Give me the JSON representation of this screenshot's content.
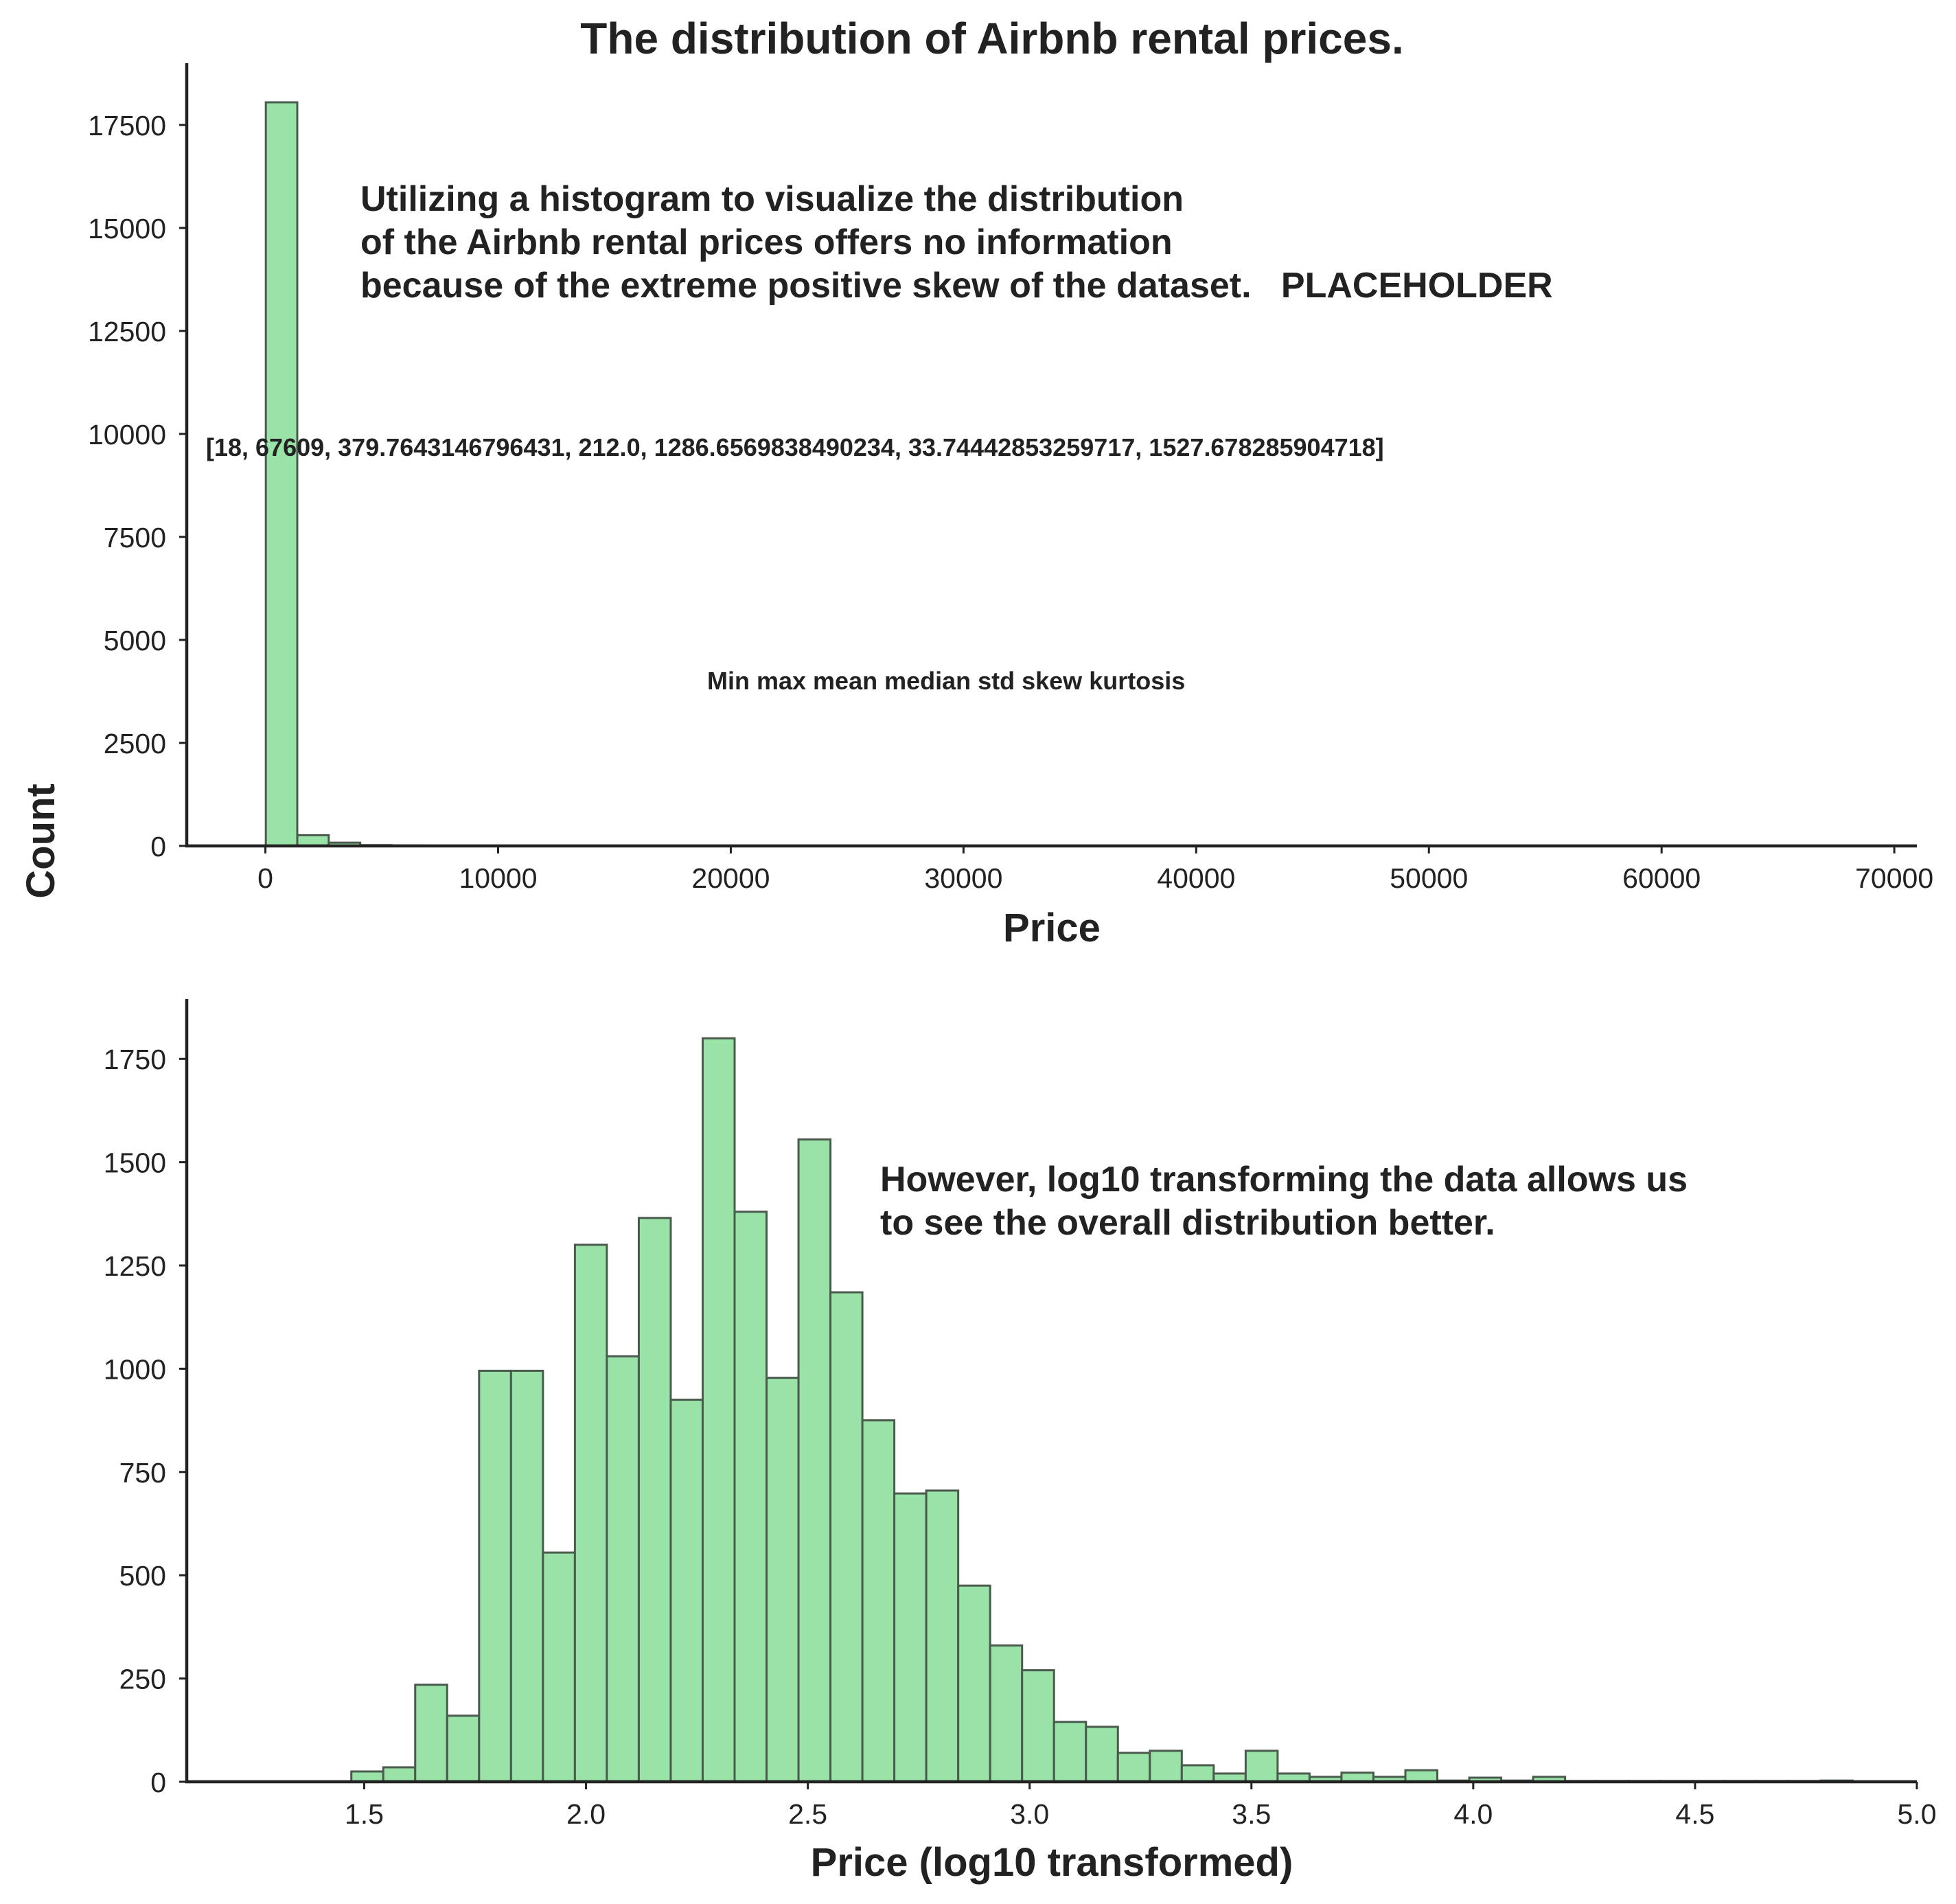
{
  "figure": {
    "title": "The distribution of Airbnb rental prices.",
    "ylabel": "Count"
  },
  "colors": {
    "bar_fill": "#99e2a8",
    "bar_edge": "#4a5a4c",
    "text": "#222222"
  },
  "annotations": {
    "top_note": [
      "Utilizing a histogram to visualize the distribution",
      "of the Airbnb rental prices offers no information",
      "because of the extreme positive skew of the dataset.   PLACEHOLDER"
    ],
    "stats_values": "[18, 67609, 379.7643146796431, 212.0, 1286.6569838490234, 33.74442853259717, 1527.678285904718]",
    "stats_names": "Min max mean median std skew kurtosis",
    "bottom_note": [
      "However, log10 transforming the data allows us",
      "to see the overall distribution better."
    ]
  },
  "chart_data": [
    {
      "type": "bar",
      "xlabel": "Price",
      "ylabel": "Count",
      "xlim": [
        -3380,
        70970
      ],
      "ylim": [
        0,
        19000
      ],
      "xticks": [
        0,
        10000,
        20000,
        30000,
        40000,
        50000,
        60000,
        70000
      ],
      "xtick_labels": [
        "0",
        "10000",
        "20000",
        "30000",
        "40000",
        "50000",
        "60000",
        "70000"
      ],
      "yticks": [
        0,
        2500,
        5000,
        7500,
        10000,
        12500,
        15000,
        17500
      ],
      "ytick_labels": [
        "0",
        "2500",
        "5000",
        "7500",
        "10000",
        "12500",
        "15000",
        "17500"
      ],
      "bin_edges": [
        18,
        1370,
        2722,
        4074,
        5426,
        6778,
        8130,
        9482,
        10834,
        12186,
        13538,
        14890,
        16242,
        17594,
        18946,
        20298,
        21650,
        23002,
        24354,
        25706,
        27058,
        28410,
        29762,
        31114,
        32466,
        33818,
        35170,
        36522,
        37874,
        39226,
        40578,
        41930,
        43282,
        44634,
        45986,
        47338,
        48690,
        50042,
        51394,
        52746,
        54098,
        55450,
        56802,
        58154,
        59506,
        60858,
        62210,
        63562,
        64914,
        66266,
        67618
      ],
      "values": [
        18050,
        260,
        80,
        20,
        10,
        6,
        4,
        3,
        2,
        2,
        1,
        1,
        1,
        1,
        1,
        1,
        1,
        1,
        0,
        1,
        0,
        1,
        0,
        0,
        1,
        0,
        0,
        0,
        0,
        1,
        0,
        0,
        0,
        0,
        0,
        0,
        0,
        0,
        0,
        0,
        0,
        0,
        0,
        0,
        0,
        0,
        0,
        0,
        0,
        1
      ],
      "grid": false
    },
    {
      "type": "bar",
      "xlabel": "Price (log10 transformed)",
      "ylabel": "Count",
      "xlim": [
        1.1,
        5.0
      ],
      "ylim": [
        0,
        1895
      ],
      "xticks": [
        1.5,
        2.0,
        2.5,
        3.0,
        3.5,
        4.0,
        4.5,
        5.0
      ],
      "xtick_labels": [
        "1.5",
        "2.0",
        "2.5",
        "3.0",
        "3.5",
        "4.0",
        "4.5",
        "5.0"
      ],
      "yticks": [
        0,
        250,
        500,
        750,
        1000,
        1250,
        1500,
        1750
      ],
      "ytick_labels": [
        "0",
        "250",
        "500",
        "750",
        "1000",
        "1250",
        "1500",
        "1750"
      ],
      "bin_edges": [
        1.255,
        1.327,
        1.399,
        1.471,
        1.543,
        1.615,
        1.687,
        1.759,
        1.831,
        1.903,
        1.975,
        2.047,
        2.119,
        2.191,
        2.263,
        2.335,
        2.407,
        2.479,
        2.551,
        2.623,
        2.695,
        2.767,
        2.839,
        2.911,
        2.983,
        3.055,
        3.127,
        3.199,
        3.271,
        3.343,
        3.415,
        3.487,
        3.559,
        3.631,
        3.703,
        3.775,
        3.847,
        3.919,
        3.991,
        4.063,
        4.135,
        4.207,
        4.279,
        4.351,
        4.423,
        4.495,
        4.567,
        4.639,
        4.711,
        4.783,
        4.855
      ],
      "values": [
        0,
        0,
        0,
        25,
        35,
        235,
        160,
        995,
        995,
        555,
        1300,
        1030,
        1365,
        925,
        1800,
        1380,
        978,
        1555,
        1185,
        875,
        698,
        705,
        475,
        330,
        270,
        145,
        133,
        70,
        75,
        40,
        20,
        75,
        20,
        12,
        22,
        12,
        28,
        3,
        10,
        3,
        12,
        2,
        2,
        2,
        2,
        2,
        2,
        2,
        2,
        3
      ],
      "grid": false
    }
  ]
}
